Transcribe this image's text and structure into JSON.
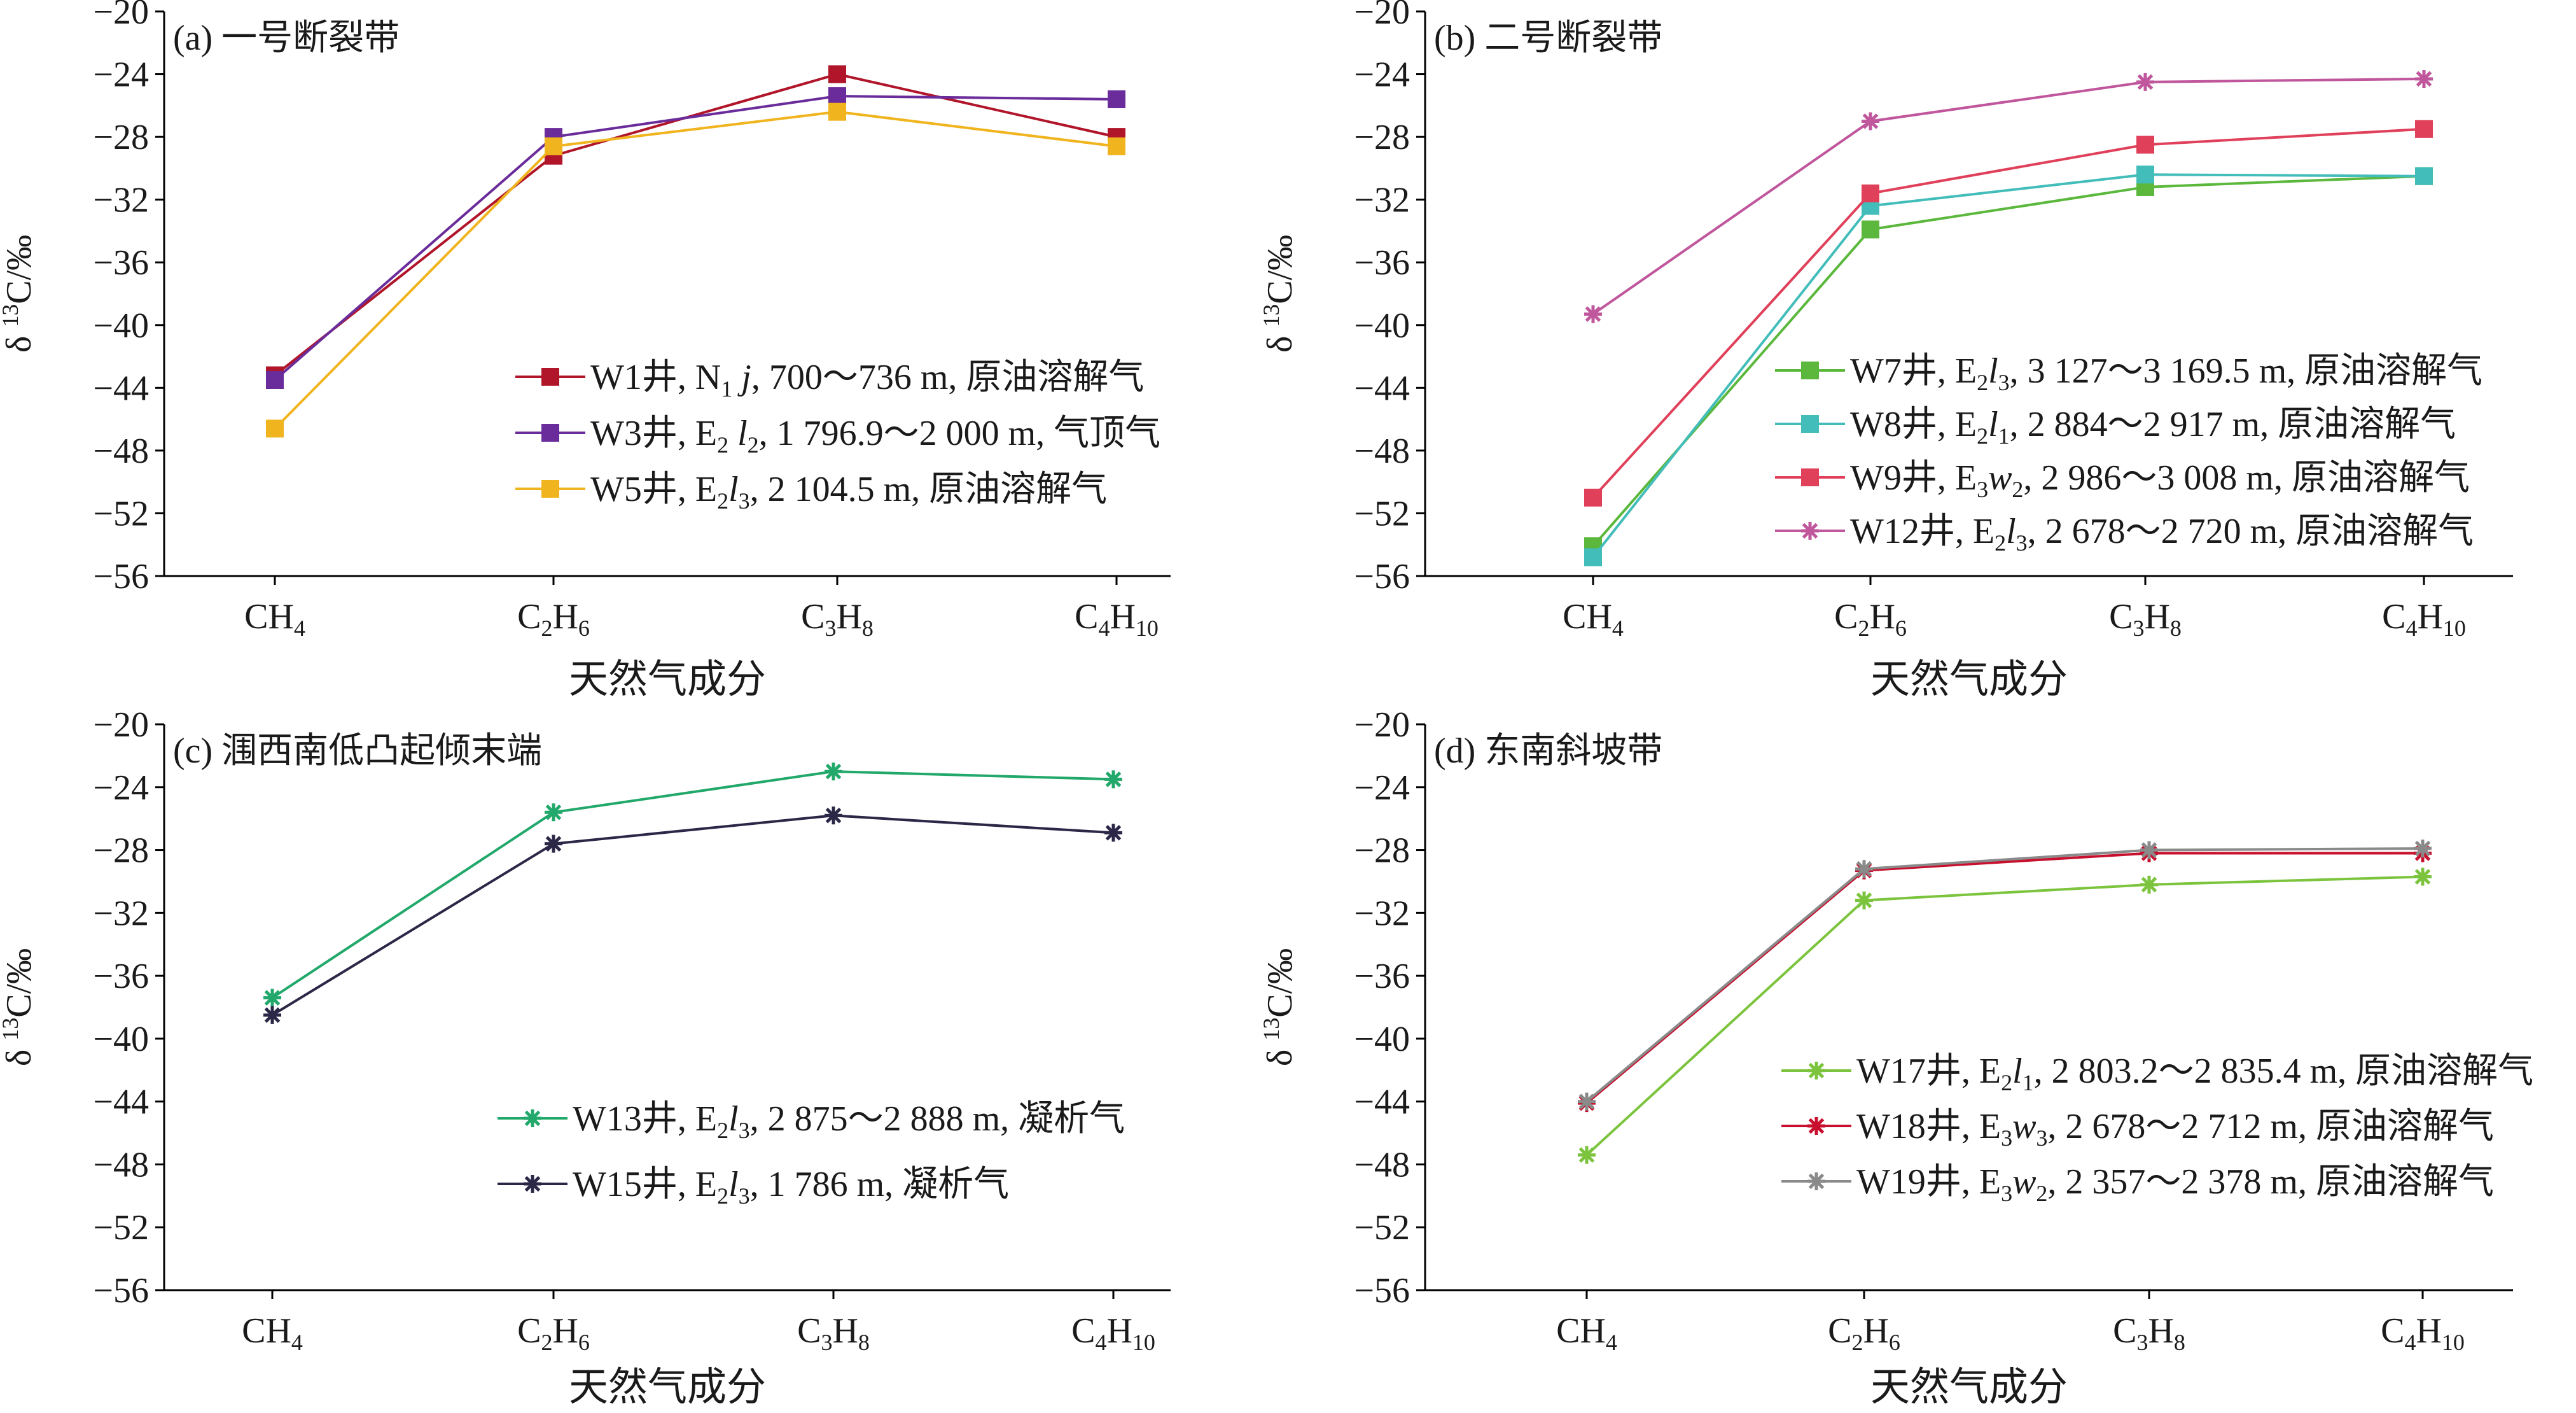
{
  "ylabel": {
    "delta": "δ",
    "sup": "13",
    "unit": "C/‰"
  },
  "chart_data": [
    {
      "type": "line",
      "title": "(a) 一号断裂带",
      "xlabel": "天然气成分",
      "ylabel": "δ13C/‰",
      "ylim": [
        -56,
        -20
      ],
      "yticks": [
        -20,
        -24,
        -28,
        -32,
        -36,
        -40,
        -44,
        -48,
        -52,
        -56
      ],
      "categories": [
        {
          "base": "CH",
          "sub": "4"
        },
        {
          "base": "C",
          "sub": "2",
          "base2": "H",
          "sub2": "6"
        },
        {
          "base": "C",
          "sub": "3",
          "base2": "H",
          "sub2": "8"
        },
        {
          "base": "C",
          "sub": "4",
          "base2": "H",
          "sub2": "10"
        }
      ],
      "legend_position": "bottom-right",
      "series": [
        {
          "name": "W1井, N1j, 700～736 m, 原油溶解气",
          "color": "#b0152a",
          "marker": "square",
          "values": [
            -43.2,
            -29.2,
            -24.0,
            -28.0
          ],
          "legend": [
            {
              "t": "W1井, N"
            },
            {
              "t": "1",
              "sub": true
            },
            {
              "t": " "
            },
            {
              "t": "j",
              "it": true
            },
            {
              "t": ", 700～736 m, 原油溶解气"
            }
          ]
        },
        {
          "name": "W3井, E2l2, 1 796.9～2 000 m, 气顶气",
          "color": "#6a2c9a",
          "marker": "square",
          "values": [
            -43.5,
            -28.0,
            -25.4,
            -25.6
          ],
          "legend": [
            {
              "t": "W3井, E"
            },
            {
              "t": "2",
              "sub": true
            },
            {
              "t": " "
            },
            {
              "t": "l",
              "it": true
            },
            {
              "t": "2",
              "sub": true
            },
            {
              "t": ", 1 796.9～2 000 m, 气顶气"
            }
          ]
        },
        {
          "name": "W5井, E2l3, 2 104.5 m, 原油溶解气",
          "color": "#f0b41e",
          "marker": "square",
          "values": [
            -46.6,
            -28.6,
            -26.4,
            -28.6
          ],
          "legend": [
            {
              "t": "W5井, E"
            },
            {
              "t": "2",
              "sub": true
            },
            {
              "t": "l",
              "it": true
            },
            {
              "t": "3",
              "sub": true
            },
            {
              "t": ", 2 104.5 m, 原油溶解气"
            }
          ]
        }
      ]
    },
    {
      "type": "line",
      "title": "(b) 二号断裂带",
      "xlabel": "天然气成分",
      "ylabel": "δ13C/‰",
      "ylim": [
        -56,
        -20
      ],
      "yticks": [
        -20,
        -24,
        -28,
        -32,
        -36,
        -40,
        -44,
        -48,
        -52,
        -56
      ],
      "categories": [
        {
          "base": "CH",
          "sub": "4"
        },
        {
          "base": "C",
          "sub": "2",
          "base2": "H",
          "sub2": "6"
        },
        {
          "base": "C",
          "sub": "3",
          "base2": "H",
          "sub2": "8"
        },
        {
          "base": "C",
          "sub": "4",
          "base2": "H",
          "sub2": "10"
        }
      ],
      "legend_position": "bottom-right",
      "series": [
        {
          "name": "W7井, E2l3, 3 127～3 169.5 m, 原油溶解气",
          "color": "#5bb83c",
          "marker": "square",
          "values": [
            -54.1,
            -33.9,
            -31.2,
            -30.5
          ],
          "legend": [
            {
              "t": "W7井, E"
            },
            {
              "t": "2",
              "sub": true
            },
            {
              "t": "l",
              "it": true
            },
            {
              "t": "3",
              "sub": true
            },
            {
              "t": ", 3 127～3 169.5 m, 原油溶解气"
            }
          ]
        },
        {
          "name": "W8井, E2l1, 2 884～2 917 m, 原油溶解气",
          "color": "#43bdb9",
          "marker": "square",
          "values": [
            -54.8,
            -32.4,
            -30.4,
            -30.5
          ],
          "legend": [
            {
              "t": "W8井, E"
            },
            {
              "t": "2",
              "sub": true
            },
            {
              "t": "l",
              "it": true
            },
            {
              "t": "1",
              "sub": true
            },
            {
              "t": ", 2 884～2 917 m, 原油溶解气"
            }
          ]
        },
        {
          "name": "W9井, E3w2, 2 986～3 008 m, 原油溶解气",
          "color": "#e0405a",
          "marker": "square",
          "values": [
            -51.0,
            -31.6,
            -28.5,
            -27.5
          ],
          "legend": [
            {
              "t": "W9井, E"
            },
            {
              "t": "3",
              "sub": true
            },
            {
              "t": "w",
              "it": true
            },
            {
              "t": "2",
              "sub": true
            },
            {
              "t": ", 2 986～3 008 m, 原油溶解气"
            }
          ]
        },
        {
          "name": "W12井, E2l3, 2 678～2 720 m, 原油溶解气",
          "color": "#c0569c",
          "marker": "star",
          "values": [
            -39.3,
            -27.0,
            -24.5,
            -24.3
          ],
          "legend": [
            {
              "t": "W12井, E"
            },
            {
              "t": "2",
              "sub": true
            },
            {
              "t": "l",
              "it": true
            },
            {
              "t": "3",
              "sub": true
            },
            {
              "t": ", 2 678～2 720 m, 原油溶解气"
            }
          ]
        }
      ]
    },
    {
      "type": "line",
      "title": "(c) 涠西南低凸起倾末端",
      "xlabel": "天然气成分",
      "ylabel": "δ13C/‰",
      "ylim": [
        -56,
        -20
      ],
      "yticks": [
        -20,
        -24,
        -28,
        -32,
        -36,
        -40,
        -44,
        -48,
        -52,
        -56
      ],
      "categories": [
        {
          "base": "CH",
          "sub": "4"
        },
        {
          "base": "C",
          "sub": "2",
          "base2": "H",
          "sub2": "6"
        },
        {
          "base": "C",
          "sub": "3",
          "base2": "H",
          "sub2": "8"
        },
        {
          "base": "C",
          "sub": "4",
          "base2": "H",
          "sub2": "10"
        }
      ],
      "legend_position": "bottom-right",
      "series": [
        {
          "name": "W13井, E2l3, 2 875～2 888 m, 凝析气",
          "color": "#21a86a",
          "marker": "star",
          "values": [
            -37.4,
            -25.6,
            -23.0,
            -23.5
          ],
          "legend": [
            {
              "t": "W13井, E"
            },
            {
              "t": "2",
              "sub": true
            },
            {
              "t": "l",
              "it": true
            },
            {
              "t": "3",
              "sub": true
            },
            {
              "t": ", 2 875～2 888 m, 凝析气"
            }
          ]
        },
        {
          "name": "W15井, E2l3, 1 786 m, 凝析气",
          "color": "#2b2747",
          "marker": "star",
          "values": [
            -38.5,
            -27.6,
            -25.8,
            -26.9
          ],
          "legend": [
            {
              "t": "W15井, E"
            },
            {
              "t": "2",
              "sub": true
            },
            {
              "t": "l",
              "it": true
            },
            {
              "t": "3",
              "sub": true
            },
            {
              "t": ", 1 786 m, 凝析气"
            }
          ]
        }
      ]
    },
    {
      "type": "line",
      "title": "(d) 东南斜坡带",
      "xlabel": "天然气成分",
      "ylabel": "δ13C/‰",
      "ylim": [
        -56,
        -20
      ],
      "yticks": [
        -20,
        -24,
        -28,
        -32,
        -36,
        -40,
        -44,
        -48,
        -52,
        -56
      ],
      "categories": [
        {
          "base": "CH",
          "sub": "4"
        },
        {
          "base": "C",
          "sub": "2",
          "base2": "H",
          "sub2": "6"
        },
        {
          "base": "C",
          "sub": "3",
          "base2": "H",
          "sub2": "8"
        },
        {
          "base": "C",
          "sub": "4",
          "base2": "H",
          "sub2": "10"
        }
      ],
      "legend_position": "bottom-right",
      "series": [
        {
          "name": "W17井, E2l1, 2 803.2～2 835.4 m, 原油溶解气",
          "color": "#7cc43e",
          "marker": "star",
          "values": [
            -47.4,
            -31.2,
            -30.2,
            -29.7
          ],
          "legend": [
            {
              "t": "W17井, E"
            },
            {
              "t": "2",
              "sub": true
            },
            {
              "t": "l",
              "it": true
            },
            {
              "t": "1",
              "sub": true
            },
            {
              "t": ", 2 803.2～2 835.4 m, 原油溶解气"
            }
          ]
        },
        {
          "name": "W18井, E3w3, 2 678～2 712 m, 原油溶解气",
          "color": "#c8102e",
          "marker": "star",
          "values": [
            -44.1,
            -29.3,
            -28.2,
            -28.2
          ],
          "legend": [
            {
              "t": "W18井, E"
            },
            {
              "t": "3",
              "sub": true
            },
            {
              "t": "w",
              "it": true
            },
            {
              "t": "3",
              "sub": true
            },
            {
              "t": ", 2 678～2 712 m, 原油溶解气"
            }
          ]
        },
        {
          "name": "W19井, E3w2, 2 357～2 378 m, 原油溶解气",
          "color": "#8a8a8a",
          "marker": "star",
          "values": [
            -44.0,
            -29.2,
            -28.0,
            -27.9
          ],
          "legend": [
            {
              "t": "W19井, E"
            },
            {
              "t": "3",
              "sub": true
            },
            {
              "t": "w",
              "it": true
            },
            {
              "t": "2",
              "sub": true
            },
            {
              "t": ", 2 357～2 378 m, 原油溶解气"
            }
          ]
        }
      ]
    }
  ]
}
